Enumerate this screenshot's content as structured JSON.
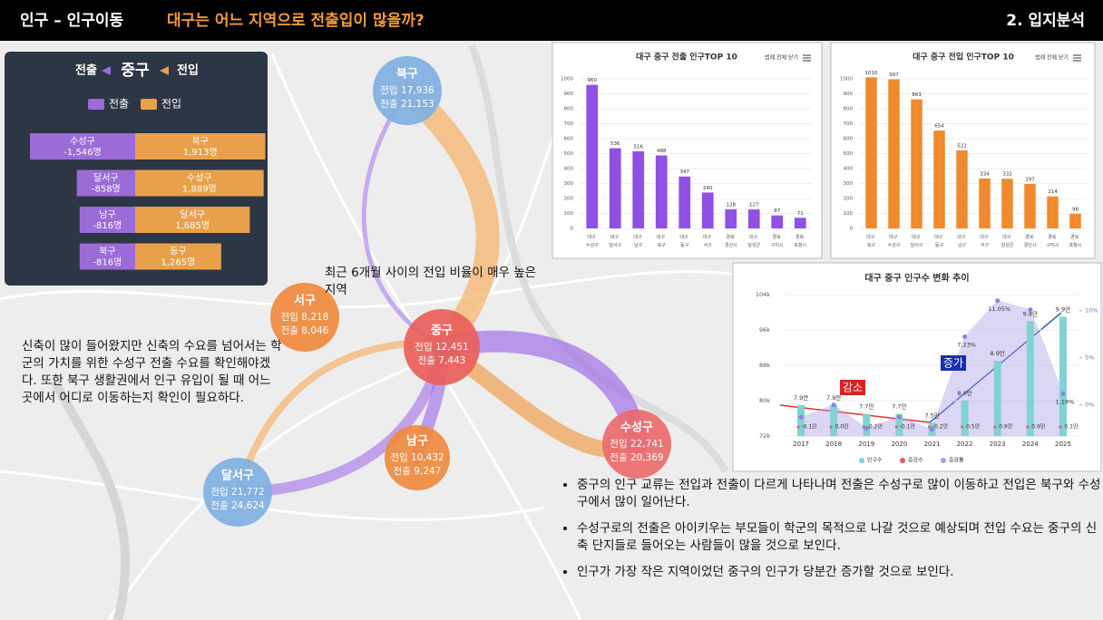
{
  "header": {
    "section": "인구 – 인구이동",
    "question": "대구는 어느 지역으로 전출입이 많을까?",
    "chapter": "2. 입지분석"
  },
  "flow_panel": {
    "out_label": "전출",
    "center": "중구",
    "in_label": "전입",
    "legend": [
      "전출",
      "전입"
    ],
    "rows": [
      {
        "out_name": "수성구",
        "out": -1546,
        "out_label": "-1,546명",
        "in_name": "북구",
        "in": 1913,
        "in_label": "1,913명"
      },
      {
        "out_name": "달서구",
        "out": -858,
        "out_label": "-858명",
        "in_name": "수성구",
        "in": 1889,
        "in_label": "1,889명"
      },
      {
        "out_name": "남구",
        "out": -816,
        "out_label": "-816명",
        "in_name": "달서구",
        "in": 1685,
        "in_label": "1,685명"
      },
      {
        "out_name": "북구",
        "out": -816,
        "out_label": "-816명",
        "in_name": "동구",
        "in": 1265,
        "in_label": "1,265명"
      }
    ]
  },
  "nodes": [
    {
      "name": "북구",
      "in": "전입 17,936",
      "out": "전출 21,153"
    },
    {
      "name": "서구",
      "in": "전입 8,218",
      "out": "전출 8,046"
    },
    {
      "name": "중구",
      "in": "전입 12,451",
      "out": "전출 7,443"
    },
    {
      "name": "수성구",
      "in": "전입 22,741",
      "out": "전출 20,369"
    },
    {
      "name": "남구",
      "in": "전입 10,432",
      "out": "전출 9,247"
    },
    {
      "name": "달서구",
      "in": "전입 21,772",
      "out": "전출 24,624"
    }
  ],
  "callout": "최근 6개월 사이의 전입 비율이 매우 높은 지역",
  "paragraph": "신축이 많이 들어왔지만 신축의 수요를 넘어서는 학군의 가치를 위한 수성구 전출 수요를 확인해야겠다. 또한 북구 생활권에서 인구 유입이 될 때 어느 곳에서 어디로 이동하는지 확인이 필요하다.",
  "bullets": [
    "중구의 인구 교류는 전입과 전출이 다르게 나타나며 전출은 수성구로 많이 이동하고 전입은 북구와 수성구에서 많이 일어난다.",
    "수성구로의 전출은 아이키우는 부모들이 학군의 목적으로 나갈 것으로 예상되며 전입 수요는 중구의 신축 단지들로 들어오는 사람들이 많을 것으로 보인다.",
    "인구가 가장 작은 지역이었던 중구의 인구가 당분간 증가할 것으로 보인다."
  ],
  "chart_data": [
    {
      "type": "bar",
      "title": "대구 중구 전출 인구TOP 10",
      "button": "범례 전체 닫기",
      "color": "#9150e4",
      "categories": [
        "대구 수성구",
        "대구 달서구",
        "대구 남구",
        "대구 북구",
        "대구 동구",
        "대구 서구",
        "경북 경산시",
        "대구 달성군",
        "경북 구미시",
        "경북 포항시"
      ],
      "values": [
        960,
        536,
        516,
        488,
        347,
        240,
        128,
        127,
        87,
        71
      ],
      "ylim": [
        0,
        1000
      ],
      "yticks": [
        0,
        100,
        200,
        300,
        400,
        500,
        600,
        700,
        800,
        900,
        1000
      ]
    },
    {
      "type": "bar",
      "title": "대구 중구 전입 인구TOP 10",
      "button": "범례 전체 닫기",
      "color": "#ef8a2e",
      "categories": [
        "대구 북구",
        "대구 수성구",
        "대구 달서구",
        "대구 동구",
        "대구 남구",
        "대구 서구",
        "대구 달성군",
        "경북 경산시",
        "경북 구미시",
        "경북 포항시"
      ],
      "values": [
        1010,
        997,
        863,
        654,
        522,
        334,
        332,
        297,
        214,
        98
      ],
      "ylim": [
        0,
        1000
      ],
      "yticks": [
        0,
        100,
        200,
        300,
        400,
        500,
        600,
        700,
        800,
        900,
        1000
      ]
    },
    {
      "type": "combo",
      "title": "대구 중구 인구수 변화 추이",
      "categories": [
        "2017",
        "2018",
        "2019",
        "2020",
        "2021",
        "2022",
        "2023",
        "2024",
        "2025"
      ],
      "series": [
        {
          "name": "인구수",
          "color": "#7fd3d3",
          "values": [
            79000,
            79000,
            77000,
            77000,
            75000,
            80000,
            89000,
            98000,
            99000
          ],
          "value_labels": [
            "7.9만",
            "7.9만",
            "7.7만",
            "7.7만",
            "7.5만",
            "8.0만",
            "8.9만",
            "9.8만",
            "9.9만"
          ]
        },
        {
          "name": "증감수",
          "color": "#e85a5a",
          "values": [
            -1000,
            0,
            -2000,
            -1000,
            -2000,
            5000,
            9000,
            9000,
            1000
          ],
          "value_labels": [
            "-0.1만",
            "0.0만",
            "-0.2만",
            "-0.1만",
            "-0.2만",
            "0.5만",
            "0.9만",
            "0.9만",
            "0.1만"
          ]
        },
        {
          "name": "증감률",
          "color": "#a99be8",
          "axis": "y2",
          "values": [
            -1.3,
            0,
            -2.5,
            -1.3,
            -2.6,
            7.23,
            11.05,
            10.1,
            1.19
          ],
          "value_labels": [
            null,
            null,
            null,
            null,
            null,
            "7.23%",
            "11.05%",
            null,
            "1.19%"
          ]
        }
      ],
      "ylim": [
        72000,
        104000
      ],
      "yticks": [
        {
          "value": 72000,
          "label": "72k"
        },
        {
          "value": 80000,
          "label": "80k"
        },
        {
          "value": 88000,
          "label": "88k"
        },
        {
          "value": 96000,
          "label": "96k"
        },
        {
          "value": 104000,
          "label": "104k"
        }
      ],
      "y2lim": [
        -3.3,
        11.7
      ],
      "y2ticks": [
        {
          "value": 0,
          "label": "0%"
        },
        {
          "value": 5,
          "label": "5%"
        },
        {
          "value": 10,
          "label": "10%"
        }
      ],
      "annotations": [
        "감소",
        "증가"
      ]
    }
  ]
}
